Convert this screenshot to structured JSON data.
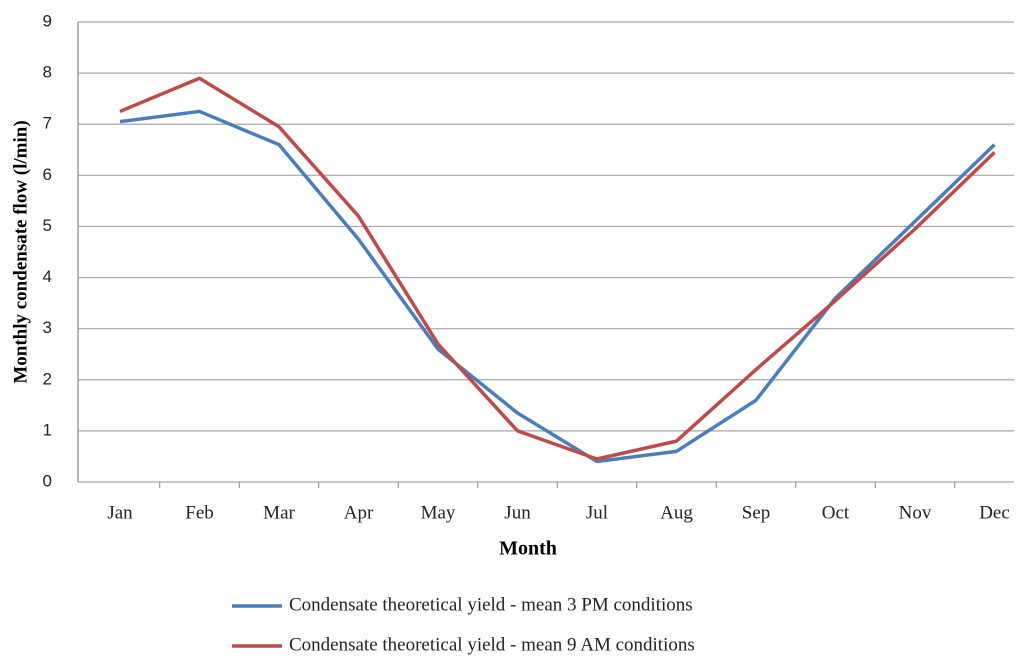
{
  "chart_data": {
    "type": "line",
    "x_label": "Month",
    "y_label": "Monthly condensate flow (l/min)",
    "categories": [
      "Jan",
      "Feb",
      "Mar",
      "Apr",
      "May",
      "Jun",
      "Jul",
      "Aug",
      "Sep",
      "Oct",
      "Nov",
      "Dec"
    ],
    "series": [
      {
        "name": "Condensate theoretical yield - mean 3 PM conditions",
        "color": "#4a7ebb",
        "values": [
          7.05,
          7.25,
          6.6,
          4.75,
          2.6,
          1.35,
          0.4,
          0.6,
          1.6,
          3.6,
          5.1,
          6.6
        ]
      },
      {
        "name": "Condensate theoretical yield - mean 9 AM conditions",
        "color": "#be4b48",
        "values": [
          7.25,
          7.9,
          6.95,
          5.2,
          2.7,
          1.0,
          0.45,
          0.8,
          2.2,
          3.55,
          4.95,
          6.45
        ]
      }
    ],
    "ylim": [
      0,
      9
    ],
    "yticks": [
      0,
      1,
      2,
      3,
      4,
      5,
      6,
      7,
      8,
      9
    ],
    "grid": true,
    "legend": "bottom"
  }
}
